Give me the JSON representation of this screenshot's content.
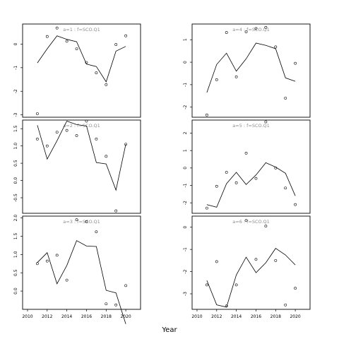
{
  "chart_data": {
    "type": "line",
    "xlabel": "Year",
    "panels": [
      {
        "label": "a=1 : f=SCO.Q1",
        "ylim": [
          -3.1,
          0.85
        ],
        "yticks": [
          -3,
          -2,
          -1,
          0
        ],
        "xlim": [
          2009.5,
          2021.5
        ],
        "xticks": [],
        "line": {
          "x": [
            2011,
            2012,
            2013,
            2014,
            2015,
            2016,
            2017,
            2018,
            2019,
            2020
          ],
          "y": [
            -0.8,
            -0.2,
            0.35,
            0.2,
            0.1,
            -0.85,
            -0.95,
            -1.6,
            -0.3,
            -0.1
          ]
        },
        "points": {
          "x": [
            2011,
            2012,
            2013,
            2014,
            2015,
            2016,
            2017,
            2018,
            2019,
            2020
          ],
          "y": [
            -2.95,
            0.32,
            0.68,
            0.12,
            -0.2,
            -0.78,
            -1.22,
            -1.72,
            -0.02,
            0.35
          ]
        }
      },
      {
        "label": "a=4 : f=SCO.Q1",
        "ylim": [
          -2.45,
          1.7
        ],
        "yticks": [
          -2,
          -1,
          0,
          1
        ],
        "xlim": [
          2009.5,
          2021.5
        ],
        "xticks": [],
        "line": {
          "x": [
            2011,
            2012,
            2013,
            2014,
            2015,
            2016,
            2017,
            2018,
            2019,
            2020
          ],
          "y": [
            -1.35,
            -0.1,
            0.4,
            -0.4,
            0.15,
            0.85,
            0.75,
            0.6,
            -0.7,
            -0.85
          ]
        },
        "points": {
          "x": [
            2011,
            2012,
            2013,
            2014,
            2015,
            2016,
            2017,
            2018,
            2019,
            2020
          ],
          "y": [
            -2.35,
            -0.78,
            1.32,
            -0.65,
            1.35,
            1.5,
            1.55,
            0.68,
            -1.6,
            -0.05
          ]
        }
      },
      {
        "label": "a=2 : f=SCO.Q1",
        "ylim": [
          -0.95,
          1.75
        ],
        "yticks": [
          -0.5,
          0.0,
          0.5,
          1.0,
          1.5
        ],
        "xlim": [
          2009.5,
          2021.5
        ],
        "xticks": [],
        "line": {
          "x": [
            2011,
            2012,
            2013,
            2014,
            2015,
            2016,
            2017,
            2018,
            2019,
            2020
          ],
          "y": [
            1.6,
            0.62,
            1.15,
            1.72,
            1.62,
            1.58,
            0.52,
            0.48,
            -0.28,
            1.05
          ]
        },
        "points": {
          "x": [
            2011,
            2012,
            2013,
            2014,
            2015,
            2016,
            2017,
            2018,
            2019,
            2020
          ],
          "y": [
            1.2,
            1.0,
            1.4,
            1.45,
            1.3,
            1.72,
            1.2,
            0.7,
            -0.88,
            1.05
          ]
        }
      },
      {
        "label": "a=5 : f=SCO.Q1",
        "ylim": [
          -2.6,
          2.75
        ],
        "yticks": [
          -2,
          -1,
          0,
          1,
          2
        ],
        "xlim": [
          2009.5,
          2021.5
        ],
        "xticks": [],
        "line": {
          "x": [
            2011,
            2012,
            2013,
            2014,
            2015,
            2016,
            2017,
            2018,
            2019,
            2020
          ],
          "y": [
            -2.1,
            -2.25,
            -0.9,
            -0.25,
            -0.95,
            -0.4,
            0.3,
            0.05,
            -0.3,
            -1.6
          ]
        },
        "points": {
          "x": [
            2011,
            2012,
            2013,
            2014,
            2015,
            2016,
            2017,
            2018,
            2019,
            2020
          ],
          "y": [
            -2.3,
            -1.05,
            -0.25,
            -0.85,
            0.85,
            -0.6,
            2.65,
            0.0,
            -1.15,
            -2.1
          ]
        }
      },
      {
        "label": "a=3 : f=SCO.Q1",
        "ylim": [
          -0.5,
          2.05
        ],
        "yticks": [
          0.0,
          0.5,
          1.0,
          1.5,
          2.0
        ],
        "xlim": [
          2009.5,
          2021.5
        ],
        "xticks": [
          2010,
          2012,
          2014,
          2016,
          2018,
          2020
        ],
        "line": {
          "x": [
            2011,
            2012,
            2013,
            2014,
            2015,
            2016,
            2017,
            2018,
            2019,
            2020
          ],
          "y": [
            0.78,
            1.05,
            0.2,
            0.7,
            1.38,
            1.23,
            1.22,
            0.02,
            -0.05,
            -0.9
          ]
        },
        "points": {
          "x": [
            2011,
            2012,
            2013,
            2014,
            2015,
            2016,
            2017,
            2018,
            2019,
            2020
          ],
          "y": [
            0.75,
            0.82,
            0.98,
            0.3,
            1.95,
            1.9,
            1.62,
            -0.35,
            -0.38,
            0.15
          ]
        }
      },
      {
        "label": "a=6 : f=SCO.Q1",
        "ylim": [
          -3.7,
          0.5
        ],
        "yticks": [
          -3,
          -2,
          -1,
          0
        ],
        "xlim": [
          2009.5,
          2021.5
        ],
        "xticks": [
          2010,
          2012,
          2014,
          2016,
          2018,
          2020
        ],
        "line": {
          "x": [
            2011,
            2012,
            2013,
            2014,
            2015,
            2016,
            2017,
            2018,
            2019,
            2020
          ],
          "y": [
            -2.4,
            -3.5,
            -3.6,
            -2.15,
            -1.35,
            -2.05,
            -1.6,
            -0.95,
            -1.25,
            -1.7
          ]
        },
        "points": {
          "x": [
            2011,
            2012,
            2013,
            2014,
            2015,
            2016,
            2017,
            2018,
            2019,
            2020
          ],
          "y": [
            -2.6,
            -1.55,
            -3.55,
            -2.6,
            0.3,
            -1.45,
            0.05,
            -1.5,
            -3.5,
            -2.75
          ]
        }
      }
    ]
  }
}
